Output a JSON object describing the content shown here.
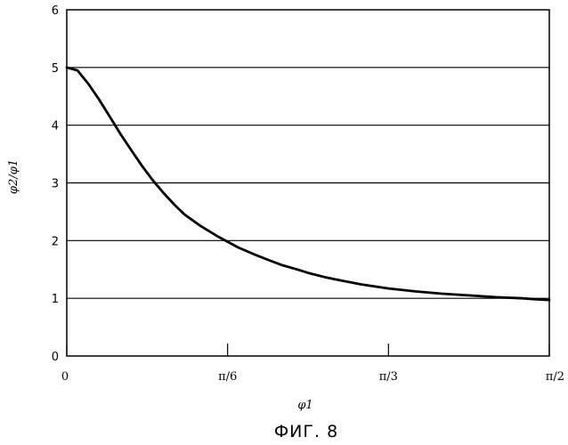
{
  "chart_data": {
    "type": "line",
    "title": "",
    "xlabel": "φ1",
    "ylabel": "φ2/φ1",
    "xlim": [
      0,
      90
    ],
    "ylim": [
      0,
      6
    ],
    "x_unit": "degrees",
    "grid": "horizontal",
    "legend": "none",
    "yticks": [
      0,
      1,
      2,
      3,
      4,
      5,
      6
    ],
    "ytick_labels": [
      "0",
      "1",
      "2",
      "3",
      "4",
      "5",
      "6"
    ],
    "xticks": [
      0,
      30,
      60,
      90
    ],
    "xtick_labels": [
      "0",
      "π/6",
      "π/3",
      "π/2"
    ],
    "series": [
      {
        "x": [
          0,
          2,
          4,
          6,
          8,
          10,
          12,
          14,
          16,
          18,
          20,
          22,
          25,
          28,
          30,
          32,
          35,
          38,
          40,
          43,
          45,
          48,
          50,
          55,
          60,
          65,
          70,
          75,
          80,
          85,
          88,
          90
        ],
        "values": [
          5.0,
          4.95,
          4.72,
          4.45,
          4.15,
          3.85,
          3.57,
          3.3,
          3.05,
          2.83,
          2.63,
          2.45,
          2.25,
          2.08,
          1.98,
          1.88,
          1.76,
          1.65,
          1.58,
          1.5,
          1.44,
          1.37,
          1.33,
          1.24,
          1.17,
          1.12,
          1.08,
          1.05,
          1.02,
          1.0,
          0.98,
          0.97
        ]
      }
    ],
    "line_color": "#000000"
  },
  "caption": "ФИГ. 8"
}
